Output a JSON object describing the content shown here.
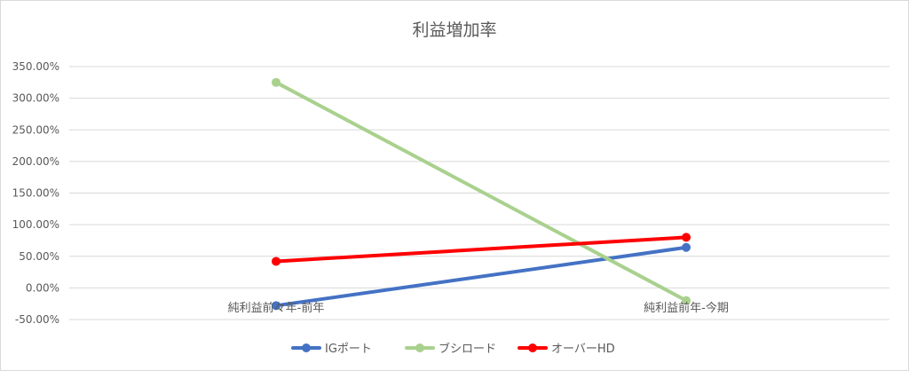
{
  "chart_data": {
    "type": "line",
    "title": "利益増加率",
    "categories": [
      "純利益前々年-前年",
      "純利益前年-今期"
    ],
    "ylim": [
      -50,
      350
    ],
    "yticks": [
      "350.00%",
      "300.00%",
      "250.00%",
      "200.00%",
      "150.00%",
      "100.00%",
      "50.00%",
      "0.00%",
      "-50.00%"
    ],
    "ytick_values": [
      350,
      300,
      250,
      200,
      150,
      100,
      50,
      0,
      -50
    ],
    "y_unit": "%",
    "grid": true,
    "legend_position": "bottom",
    "series": [
      {
        "name": "IGポート",
        "color": "#4472c4",
        "values": [
          -28,
          64
        ]
      },
      {
        "name": "ブシロード",
        "color": "#a9d18e",
        "values": [
          325,
          -20
        ]
      },
      {
        "name": "オーバーHD",
        "color": "#ff0000",
        "values": [
          42,
          80
        ]
      }
    ]
  }
}
